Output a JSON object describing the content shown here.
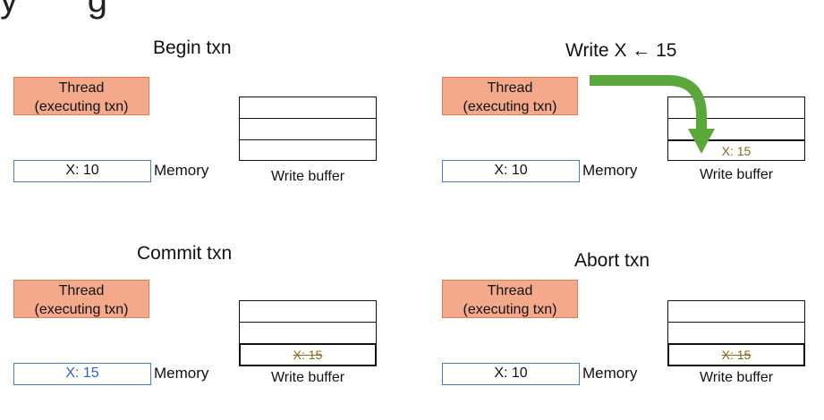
{
  "slide_title_partial": "y       g",
  "panels": [
    {
      "title": "Begin txn",
      "thread": {
        "line1": "Thread",
        "line2": "(executing txn)"
      },
      "memory": {
        "value": "X: 10",
        "color": "#111111",
        "label": "Memory"
      },
      "write_buffer": {
        "label": "Write buffer",
        "rows": [
          "",
          "",
          ""
        ]
      }
    },
    {
      "title": "Write X ← 15",
      "thread": {
        "line1": "Thread",
        "line2": "(executing txn)"
      },
      "memory": {
        "value": "X: 10",
        "color": "#111111",
        "label": "Memory"
      },
      "write_buffer": {
        "label": "Write buffer",
        "rows": [
          "",
          "",
          "X: 15"
        ]
      },
      "arrow_color": "#5aa83c"
    },
    {
      "title": "Commit txn",
      "thread": {
        "line1": "Thread",
        "line2": "(executing txn)"
      },
      "memory": {
        "value": "X: 15",
        "color": "#2e5fd1",
        "label": "Memory"
      },
      "write_buffer": {
        "label": "Write buffer",
        "rows": [
          "",
          "",
          "X: 15"
        ],
        "last_struck": true
      }
    },
    {
      "title": "Abort txn",
      "thread": {
        "line1": "Thread",
        "line2": "(executing txn)"
      },
      "memory": {
        "value": "X: 10",
        "color": "#111111",
        "label": "Memory"
      },
      "write_buffer": {
        "label": "Write buffer",
        "rows": [
          "",
          "",
          "X: 15"
        ],
        "last_struck": true
      }
    }
  ],
  "colors": {
    "thread_fill": "#f4a98a",
    "thread_border": "#e07b54",
    "memory_border": "#4a7fc1",
    "buffer_entry_text": "#8a6a1a"
  }
}
